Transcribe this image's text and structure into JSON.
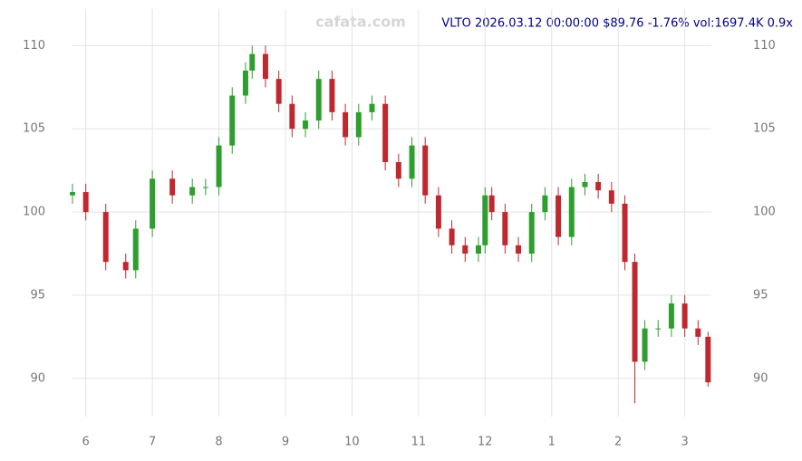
{
  "chart_data": {
    "type": "candlestick",
    "title": "VLTO 2026.03.12 00:00:00 $89.76 -1.76% vol:1697.4K 0.9x",
    "watermark": "cafata.com",
    "up_color": "#2e9e2e",
    "down_color": "#c0282f",
    "x": [
      5.8,
      6.0,
      6.3,
      6.6,
      6.75,
      7.0,
      7.3,
      7.6,
      7.8,
      8.0,
      8.2,
      8.4,
      8.5,
      8.7,
      8.9,
      9.1,
      9.3,
      9.5,
      9.7,
      9.9,
      10.1,
      10.3,
      10.5,
      10.7,
      10.9,
      11.1,
      11.3,
      11.5,
      11.7,
      11.9,
      12.0,
      12.1,
      12.3,
      12.5,
      12.7,
      12.9,
      13.1,
      13.3,
      13.5,
      13.7,
      13.9,
      14.1,
      14.25,
      14.4,
      14.6,
      14.8,
      15.0,
      15.2,
      15.35
    ],
    "open": [
      101,
      101.2,
      100,
      97,
      96.5,
      99,
      102,
      101,
      101.5,
      101.5,
      104,
      107,
      108.5,
      109.5,
      108,
      106.5,
      105,
      105.5,
      108,
      106,
      104.5,
      106,
      106.5,
      103,
      102,
      104,
      101,
      99,
      98,
      97.5,
      98,
      101,
      100,
      98,
      97.5,
      100,
      101,
      98.5,
      101.5,
      101.8,
      101.3,
      100.5,
      97,
      91,
      93,
      93,
      94.5,
      93,
      92.5
    ],
    "high": [
      101.7,
      101.7,
      100.5,
      97.5,
      99.5,
      102.5,
      102.5,
      102,
      102,
      104.5,
      107.5,
      109,
      110,
      110,
      108.5,
      107,
      106,
      108.5,
      108.5,
      106.5,
      106.5,
      107,
      107,
      103.5,
      104.5,
      104.5,
      101.5,
      99.5,
      98.5,
      98.5,
      101.5,
      101.5,
      100.5,
      98.5,
      100.5,
      101.5,
      101.5,
      102,
      102.3,
      102.3,
      101.8,
      101,
      97.5,
      93.5,
      93.5,
      95,
      95,
      93.5,
      92.8
    ],
    "low": [
      100.5,
      99.5,
      96.5,
      96,
      96,
      98.5,
      100.5,
      100.5,
      101,
      101,
      103.5,
      106.5,
      108,
      107.5,
      106,
      104.5,
      104.5,
      105,
      105.5,
      104,
      104,
      105.5,
      102.5,
      101.5,
      101.5,
      100.5,
      98.5,
      97.5,
      97,
      97,
      97.5,
      99.5,
      97.5,
      97,
      97,
      99.5,
      98,
      98,
      101,
      100.8,
      100,
      96.5,
      88.5,
      90.5,
      92.5,
      92.5,
      92.5,
      92,
      89.5
    ],
    "close": [
      101.2,
      100,
      97,
      96.5,
      99,
      102,
      101,
      101.5,
      101.5,
      104,
      107,
      108.5,
      109.5,
      108,
      106.5,
      105,
      105.5,
      108,
      106,
      104.5,
      106,
      106.5,
      103,
      102,
      104,
      101,
      99,
      98,
      97.5,
      98,
      101,
      100,
      98,
      97.5,
      100,
      101,
      98.5,
      101.5,
      101.8,
      101.3,
      100.5,
      97,
      91,
      93,
      93,
      94.5,
      93,
      92.5,
      89.76
    ],
    "xlim": [
      5.8,
      15.4
    ],
    "xticks": [
      6,
      7,
      8,
      9,
      10,
      11,
      12,
      {
        "value": 13,
        "label": "1"
      },
      {
        "value": 14,
        "label": "2"
      },
      {
        "value": 15,
        "label": "3"
      }
    ],
    "ylim": [
      87.7,
      112.2
    ],
    "yticks": [
      90,
      95,
      100,
      105,
      110
    ],
    "grid": true
  }
}
